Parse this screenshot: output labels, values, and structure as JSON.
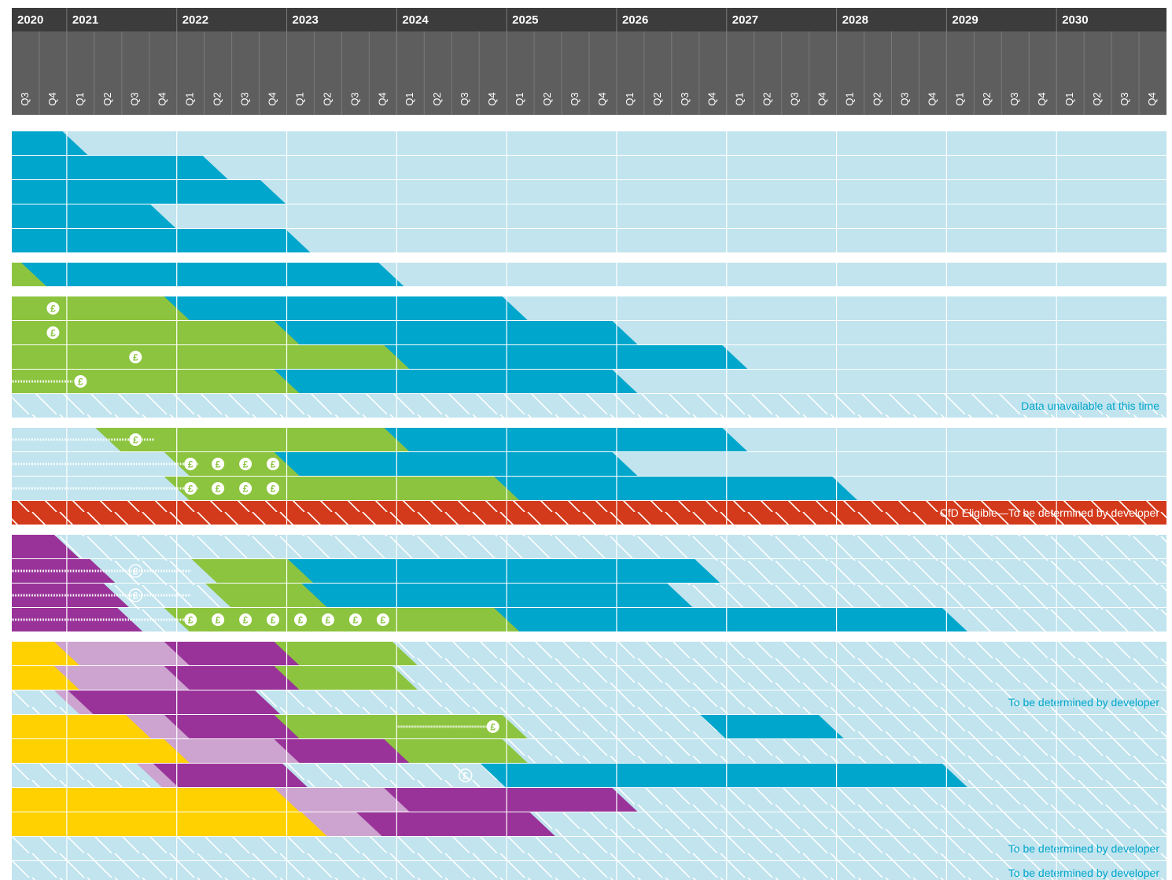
{
  "chart_data": {
    "type": "gantt",
    "colors": {
      "header_dark": "#3c3c3c",
      "header_quarter": "#5e5e5e",
      "background": "#c1e4ee",
      "operational": "#00a6cc",
      "construction": "#8cc43f",
      "pre_construction": "#993399",
      "pre_construction_light": "#cda3cf",
      "development": "#ffd100",
      "cfd": "#d33a1b",
      "note_text": "#00a6cc"
    },
    "years": [
      "2020",
      "2021",
      "2022",
      "2023",
      "2024",
      "2025",
      "2026",
      "2027",
      "2028",
      "2029",
      "2030"
    ],
    "quarters": [
      "Q3",
      "Q4",
      "Q1",
      "Q2",
      "Q3",
      "Q4",
      "Q1",
      "Q2",
      "Q3",
      "Q4",
      "Q1",
      "Q2",
      "Q3",
      "Q4",
      "Q1",
      "Q2",
      "Q3",
      "Q4",
      "Q1",
      "Q2",
      "Q3",
      "Q4",
      "Q1",
      "Q2",
      "Q3",
      "Q4",
      "Q1",
      "Q2",
      "Q3",
      "Q4",
      "Q1",
      "Q2",
      "Q3",
      "Q4",
      "Q1",
      "Q2",
      "Q3",
      "Q4",
      "Q1",
      "Q2",
      "Q3",
      "Q4"
    ],
    "currency_symbol": "£",
    "groups": [
      {
        "rows": [
          {
            "bars": [
              {
                "phase": "operational",
                "start": 0,
                "end": 2.3
              }
            ]
          },
          {
            "bars": [
              {
                "phase": "operational",
                "start": 0,
                "end": 7.4
              }
            ]
          },
          {
            "bars": [
              {
                "phase": "operational",
                "start": 0,
                "end": 9.5
              }
            ]
          },
          {
            "bars": [
              {
                "phase": "operational",
                "start": 0,
                "end": 5.5
              }
            ]
          },
          {
            "bars": [
              {
                "phase": "operational",
                "start": 0,
                "end": 10.4
              }
            ]
          }
        ]
      },
      {
        "rows": [
          {
            "bars": [
              {
                "phase": "construction",
                "start": 0,
                "end": 1.1
              },
              {
                "phase": "operational",
                "start": 0.8,
                "end": 13.8
              }
            ]
          }
        ]
      },
      {
        "rows": [
          {
            "bars": [
              {
                "phase": "construction",
                "start": 0,
                "end": 6.3
              },
              {
                "phase": "operational",
                "start": 6.0,
                "end": 18.3
              }
            ],
            "markers": [
              {
                "at": 1.5,
                "style": "solid"
              }
            ]
          },
          {
            "bars": [
              {
                "phase": "construction",
                "start": 0,
                "end": 10.3
              },
              {
                "phase": "operational",
                "start": 10.0,
                "end": 22.3
              }
            ],
            "markers": [
              {
                "at": 1.5,
                "style": "solid"
              }
            ]
          },
          {
            "bars": [
              {
                "phase": "construction",
                "start": 0,
                "end": 14.3
              },
              {
                "phase": "operational",
                "start": 14.0,
                "end": 26.3
              }
            ],
            "markers": [
              {
                "at": 4.5,
                "style": "solid"
              }
            ]
          },
          {
            "bars": [
              {
                "phase": "construction",
                "start": 0,
                "end": 10.3
              },
              {
                "phase": "operational",
                "start": 10.0,
                "end": 22.3
              }
            ],
            "lead": [
              0,
              2.2
            ],
            "markers": [
              {
                "at": 2.5,
                "style": "solid"
              }
            ]
          },
          {
            "hatched": true,
            "note": "Data unavailable at this time"
          }
        ]
      },
      {
        "rows": [
          {
            "bars": [
              {
                "phase": "construction",
                "start": 3.5,
                "end": 15.3
              },
              {
                "phase": "operational",
                "start": 14.0,
                "end": 26.3
              }
            ],
            "lead": [
              0,
              5.2
            ],
            "markers": [
              {
                "at": 4.5,
                "style": "solid"
              }
            ]
          },
          {
            "bars": [
              {
                "phase": "construction",
                "start": 6.0,
                "end": 10.5
              },
              {
                "phase": "operational",
                "start": 10.0,
                "end": 22.3
              }
            ],
            "lead": [
              0,
              6.8
            ],
            "markers": [
              {
                "at": 6.5,
                "style": "solid"
              },
              {
                "at": 7.5,
                "style": "solid"
              },
              {
                "at": 8.5,
                "style": "solid"
              },
              {
                "at": 9.5,
                "style": "solid"
              }
            ]
          },
          {
            "bars": [
              {
                "phase": "construction",
                "start": 6.0,
                "end": 18.3
              },
              {
                "phase": "operational",
                "start": 18.0,
                "end": 30.3
              }
            ],
            "lead": [
              0,
              6.8
            ],
            "markers": [
              {
                "at": 6.5,
                "style": "solid"
              },
              {
                "at": 7.5,
                "style": "solid"
              },
              {
                "at": 8.5,
                "style": "solid"
              },
              {
                "at": 9.5,
                "style": "solid"
              }
            ]
          },
          {
            "cfd": true,
            "note": "CfD Eligible—To be determined by developer"
          }
        ]
      },
      {
        "rows": [
          {
            "hatched": true,
            "bars": [
              {
                "phase": "pre_construction",
                "start": 0,
                "end": 2.0
              }
            ]
          },
          {
            "hatched": true,
            "bars": [
              {
                "phase": "pre_construction",
                "start": 0,
                "end": 3.3
              },
              {
                "phase": "construction",
                "start": 7.0,
                "end": 11.3
              },
              {
                "phase": "operational",
                "start": 10.5,
                "end": 25.3
              }
            ],
            "lead": [
              0,
              6.5
            ],
            "markers": [
              {
                "at": 4.5,
                "style": "outline"
              }
            ]
          },
          {
            "hatched": true,
            "bars": [
              {
                "phase": "pre_construction",
                "start": 0,
                "end": 3.8
              },
              {
                "phase": "construction",
                "start": 7.5,
                "end": 11.3
              },
              {
                "phase": "operational",
                "start": 11.0,
                "end": 24.3
              }
            ],
            "lead": [
              0,
              6.5
            ],
            "markers": [
              {
                "at": 4.5,
                "style": "outline"
              }
            ]
          },
          {
            "hatched": true,
            "bars": [
              {
                "phase": "pre_construction",
                "start": 0,
                "end": 4.3
              },
              {
                "phase": "construction",
                "start": 6.0,
                "end": 18.3
              },
              {
                "phase": "operational",
                "start": 18.0,
                "end": 34.3
              }
            ],
            "lead": [
              0,
              6.5
            ],
            "markers": [
              {
                "at": 6.5,
                "style": "solid"
              },
              {
                "at": 7.5,
                "style": "solid"
              },
              {
                "at": 8.5,
                "style": "solid"
              },
              {
                "at": 9.5,
                "style": "solid"
              },
              {
                "at": 10.5,
                "style": "solid"
              },
              {
                "at": 11.5,
                "style": "solid"
              },
              {
                "at": 12.5,
                "style": "solid"
              },
              {
                "at": 13.5,
                "style": "solid"
              }
            ]
          }
        ]
      },
      {
        "rows": [
          {
            "hatched": true,
            "bars": [
              {
                "phase": "development",
                "start": 0,
                "end": 2.3
              },
              {
                "phase": "pre_construction_light",
                "start": 2.0,
                "end": 6.3
              },
              {
                "phase": "pre_construction",
                "start": 6.0,
                "end": 10.3
              },
              {
                "phase": "construction",
                "start": 10.0,
                "end": 14.3
              }
            ]
          },
          {
            "hatched": true,
            "bars": [
              {
                "phase": "development",
                "start": 0,
                "end": 2.3
              },
              {
                "phase": "pre_construction_light",
                "start": 2.0,
                "end": 6.3
              },
              {
                "phase": "pre_construction",
                "start": 6.0,
                "end": 10.3
              },
              {
                "phase": "construction",
                "start": 10.0,
                "end": 14.3
              }
            ]
          },
          {
            "hatched": true,
            "bars": [
              {
                "phase": "pre_construction_light",
                "start": 2.0,
                "end": 3.3
              },
              {
                "phase": "pre_construction",
                "start": 2.5,
                "end": 9.3
              }
            ],
            "note": "To be determined by developer"
          },
          {
            "hatched": true,
            "bars": [
              {
                "phase": "development",
                "start": 0,
                "end": 5.3
              },
              {
                "phase": "pre_construction_light",
                "start": 4.6,
                "end": 6.3
              },
              {
                "phase": "pre_construction",
                "start": 6.0,
                "end": 10.3
              },
              {
                "phase": "construction",
                "start": 10.0,
                "end": 18.3
              },
              {
                "phase": "operational",
                "start": 25.5,
                "end": 29.8
              }
            ],
            "lead": [
              14.0,
              17.5
            ],
            "markers": [
              {
                "at": 17.5,
                "style": "solid"
              }
            ]
          },
          {
            "hatched": true,
            "bars": [
              {
                "phase": "development",
                "start": 0,
                "end": 6.3
              },
              {
                "phase": "pre_construction_light",
                "start": 6.0,
                "end": 10.3
              },
              {
                "phase": "pre_construction",
                "start": 10.0,
                "end": 14.3
              },
              {
                "phase": "construction",
                "start": 14.0,
                "end": 18.3
              }
            ]
          },
          {
            "hatched": true,
            "bars": [
              {
                "phase": "pre_construction_light",
                "start": 5.0,
                "end": 6.3
              },
              {
                "phase": "pre_construction",
                "start": 5.6,
                "end": 10.3
              },
              {
                "phase": "operational",
                "start": 17.5,
                "end": 34.3
              }
            ],
            "markers": [
              {
                "at": 16.5,
                "style": "outline"
              }
            ]
          },
          {
            "hatched": true,
            "bars": [
              {
                "phase": "development",
                "start": 0,
                "end": 10.3
              },
              {
                "phase": "pre_construction_light",
                "start": 10.0,
                "end": 14.3
              },
              {
                "phase": "pre_construction",
                "start": 14.0,
                "end": 22.3
              }
            ]
          },
          {
            "hatched": true,
            "bars": [
              {
                "phase": "development",
                "start": 0,
                "end": 11.3
              },
              {
                "phase": "pre_construction_light",
                "start": 11.0,
                "end": 13.3
              },
              {
                "phase": "pre_construction",
                "start": 13.0,
                "end": 19.3
              }
            ]
          },
          {
            "hatched": true,
            "note": "To be determined by developer"
          },
          {
            "hatched": true,
            "note": "To be determined by developer"
          }
        ]
      }
    ]
  }
}
